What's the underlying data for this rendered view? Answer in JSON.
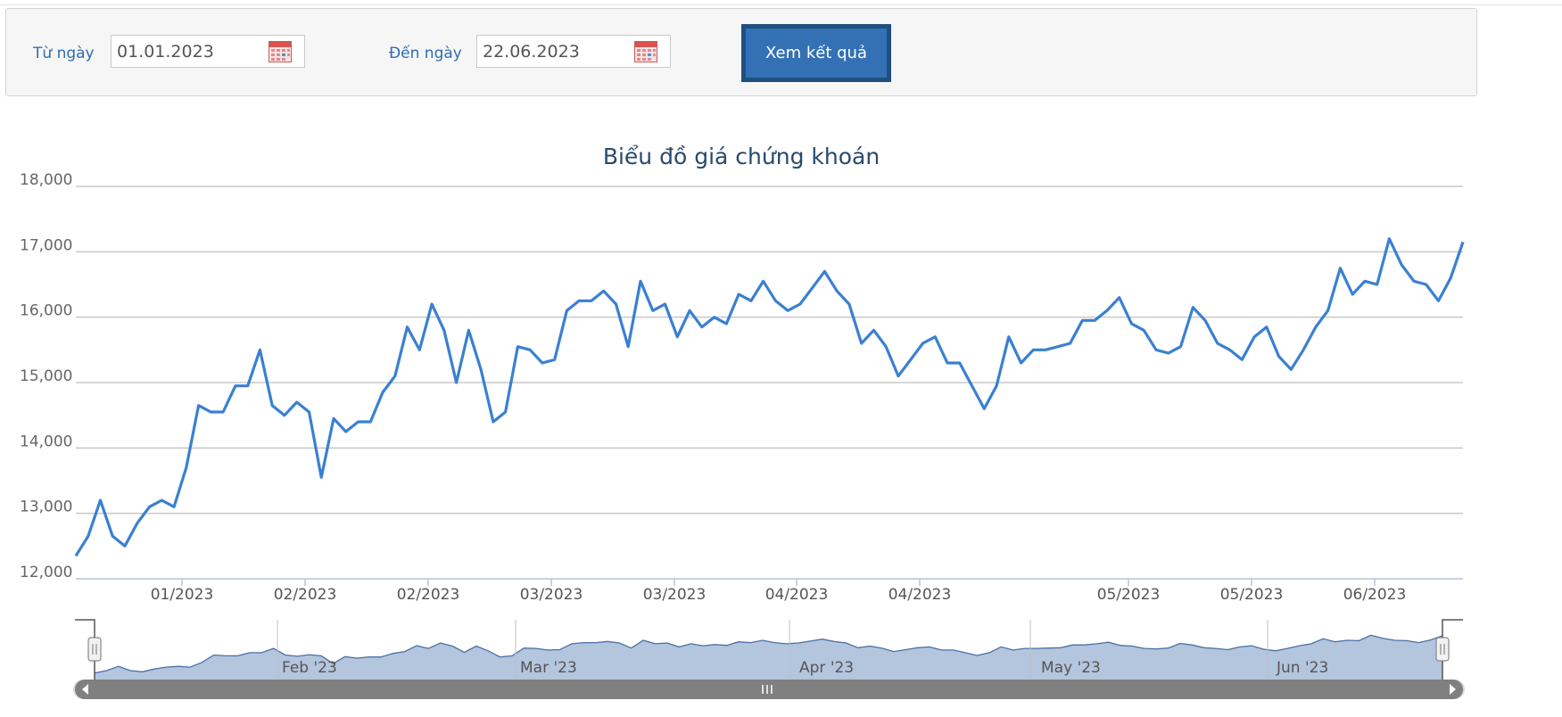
{
  "filter": {
    "from_label": "Từ ngày",
    "from_value": "01.01.2023",
    "to_label": "Đến ngày",
    "to_value": "22.06.2023",
    "submit_label": "Xem kết quả"
  },
  "colors": {
    "line": "#3a80d2",
    "navigator_fill": "#b4c5de",
    "navigator_line": "#4b6fa6",
    "scrollbar": "#808080",
    "button": "#3371b4",
    "label": "#2e6db4"
  },
  "chart_data": {
    "type": "line",
    "title": "Biểu đồ giá chứng khoán",
    "xlabel": "",
    "ylabel": "",
    "ylim": [
      12000,
      18000
    ],
    "yticks": [
      "12,000",
      "13,000",
      "14,000",
      "15,000",
      "16,000",
      "17,000",
      "18,000"
    ],
    "xticks": [
      "01/2023",
      "02/2023",
      "02/2023",
      "03/2023",
      "03/2023",
      "04/2023",
      "04/2023",
      "05/2023",
      "05/2023",
      "06/2023"
    ],
    "grid": true,
    "legend": "none",
    "series": [
      {
        "values": [
          12350,
          12650,
          13200,
          12650,
          12500,
          12850,
          13100,
          13200,
          13100,
          13700,
          14650,
          14550,
          14550,
          14950,
          14950,
          15500,
          14650,
          14500,
          14700,
          14550,
          13550,
          14450,
          14250,
          14400,
          14400,
          14850,
          15100,
          15850,
          15500,
          16200,
          15800,
          15000,
          15800,
          15200,
          14400,
          14550,
          15550,
          15500,
          15300,
          15350,
          16100,
          16250,
          16250,
          16400,
          16200,
          15550,
          16550,
          16100,
          16200,
          15700,
          16100,
          15850,
          16000,
          15900,
          16350,
          16250,
          16550,
          16250,
          16100,
          16200,
          16450,
          16700,
          16400,
          16200,
          15600,
          15800,
          15550,
          15100,
          15350,
          15600,
          15700,
          15300,
          15300,
          14950,
          14600,
          14950,
          15700,
          15300,
          15500,
          15500,
          15550,
          15600,
          15950,
          15950,
          16100,
          16300,
          15900,
          15800,
          15500,
          15450,
          15550,
          16150,
          15950,
          15600,
          15500,
          15350,
          15700,
          15850,
          15400,
          15200,
          15500,
          15850,
          16100,
          16750,
          16350,
          16550,
          16500,
          17200,
          16800,
          16550,
          16500,
          16250,
          16600,
          17150
        ]
      }
    ],
    "navigator_labels": [
      "Feb '23",
      "Mar '23",
      "Apr '23",
      "May '23",
      "Jun '23"
    ]
  }
}
